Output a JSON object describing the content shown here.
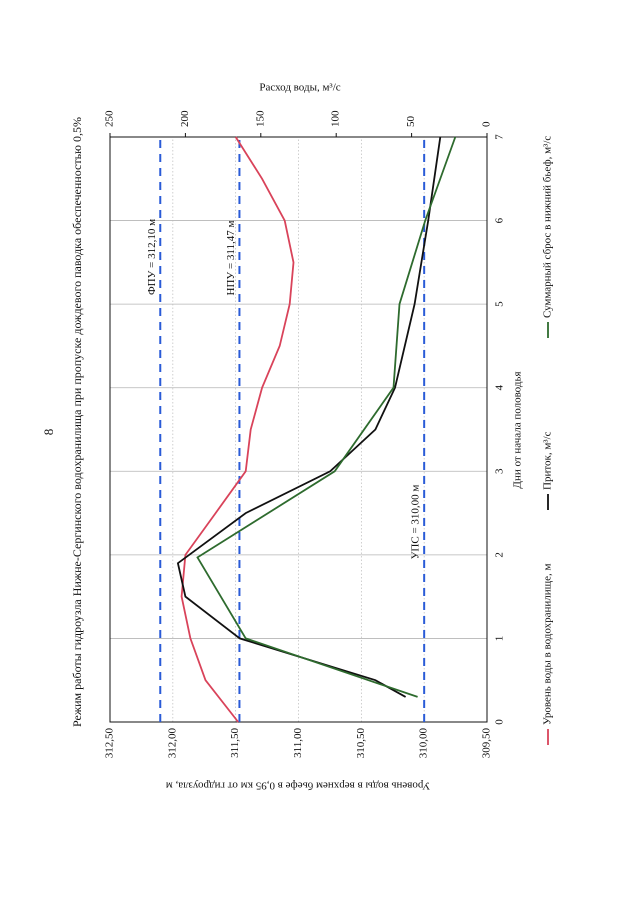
{
  "page_number": "8",
  "chart_data": {
    "type": "line",
    "title": "Режим работы гидроузла Нижне-Сергинского водохранилища при пропуске дождевого паводка обеспеченностью 0,5%",
    "x_label": "Дни от начала половодья",
    "y_label": "Уровень воды в верхнем бьефе в 0,95 км от гидроузла, м",
    "y2_label": "Расход воды, м³/с",
    "xlim": [
      0,
      7
    ],
    "xticks": [
      0,
      1,
      2,
      3,
      4,
      5,
      6,
      7
    ],
    "ylim": [
      309.5,
      312.5
    ],
    "yticks": [
      {
        "value": 309.5,
        "label": "309,50"
      },
      {
        "value": 310,
        "label": "310,00"
      },
      {
        "value": 310.5,
        "label": "310,50"
      },
      {
        "value": 311,
        "label": "311,00"
      },
      {
        "value": 311.5,
        "label": "311,50"
      },
      {
        "value": 312,
        "label": "312,00"
      },
      {
        "value": 312.5,
        "label": "312,50"
      }
    ],
    "y2lim": [
      0,
      250
    ],
    "y2ticks": [
      0,
      50,
      100,
      150,
      200,
      250
    ],
    "grid": true,
    "reference_lines": [
      {
        "label": "ФПУ = 312,10 м",
        "value": 312.1,
        "color": "#2a5bd7"
      },
      {
        "label": "НПУ = 311,47 м",
        "value": 311.47,
        "color": "#2a5bd7"
      },
      {
        "label": "УПС = 310,00 м",
        "value": 310,
        "color": "#2a5bd7"
      }
    ],
    "series": [
      {
        "name": "Уровень воды в водохранилище, м",
        "color": "#d9435a",
        "axis": "y",
        "x": [
          0,
          0.5,
          1,
          1.5,
          2,
          2.5,
          3,
          3.5,
          4,
          4.5,
          5,
          5.5,
          6,
          6.5,
          7
        ],
        "values": [
          311.48,
          311.74,
          311.86,
          311.93,
          311.9,
          311.66,
          311.42,
          311.38,
          311.29,
          311.15,
          311.07,
          311.04,
          311.11,
          311.29,
          311.5
        ]
      },
      {
        "name": "Приток, м³/с",
        "color": "#111111",
        "axis": "y2",
        "x": [
          0.3,
          0.5,
          1,
          1.5,
          1.9,
          2.5,
          3,
          3.5,
          4,
          5,
          6,
          7
        ],
        "values": [
          54,
          74,
          164,
          200,
          205,
          160,
          104,
          74,
          61,
          48,
          39,
          31
        ]
      },
      {
        "name": "Суммарный сброс в нижний бьеф, м³/с",
        "color": "#2e6b2e",
        "axis": "y2",
        "x": [
          0.3,
          1,
          1.97,
          3,
          4,
          5,
          6,
          7
        ],
        "values": [
          46,
          160,
          192,
          101,
          62,
          58,
          41,
          21
        ]
      }
    ]
  }
}
